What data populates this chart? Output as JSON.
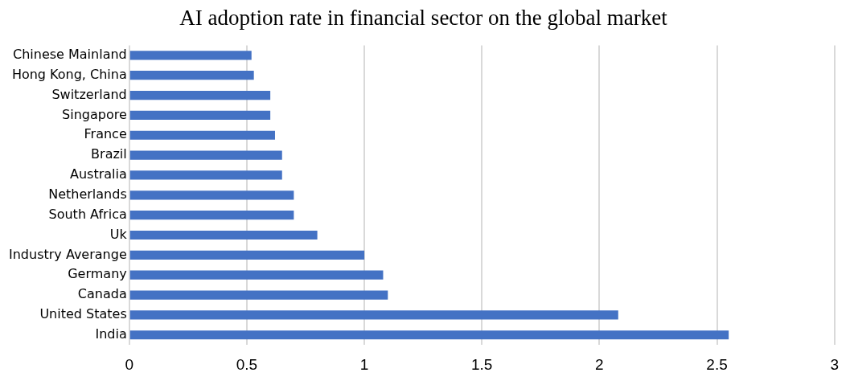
{
  "chart_data": {
    "type": "bar",
    "orientation": "horizontal",
    "title": "AI adoption rate in financial sector on the global market",
    "categories": [
      "Chinese Mainland",
      "Hong Kong, China",
      "Switzerland",
      "Singapore",
      "France",
      "Brazil",
      "Australia",
      "Netherlands",
      "South Africa",
      "Uk",
      "Industry Averange",
      "Germany",
      "Canada",
      "United States",
      "India"
    ],
    "values": [
      0.52,
      0.53,
      0.6,
      0.6,
      0.62,
      0.65,
      0.65,
      0.7,
      0.7,
      0.8,
      1.0,
      1.08,
      1.1,
      2.08,
      2.55
    ],
    "color": "#4472c4",
    "xlim": [
      0,
      3
    ],
    "xticks": [
      0,
      0.5,
      1,
      1.5,
      2,
      2.5,
      3
    ],
    "grid": "x",
    "legend": false
  }
}
